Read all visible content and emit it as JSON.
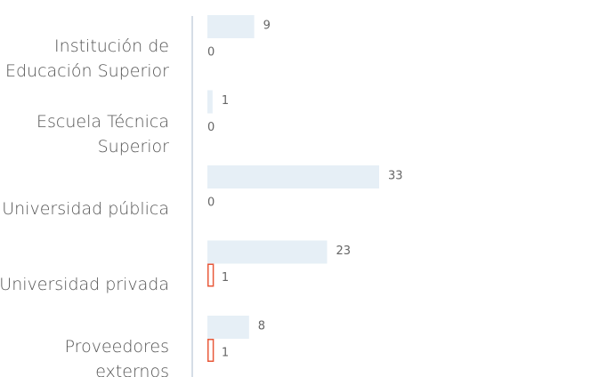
{
  "chart_data": {
    "type": "bar",
    "orientation": "horizontal",
    "categories": [
      "Institución de Educación Superior",
      "Escuela Técnica Superior",
      "Universidad pública",
      "Universidad privada",
      "Proveedores externos"
    ],
    "series": [
      {
        "color": "#e6eff6",
        "values": [
          9,
          1,
          33,
          23,
          8
        ]
      },
      {
        "color": "#e8593a",
        "values": [
          0,
          0,
          0,
          1,
          1
        ]
      }
    ],
    "xlim": [
      0,
      33
    ]
  }
}
